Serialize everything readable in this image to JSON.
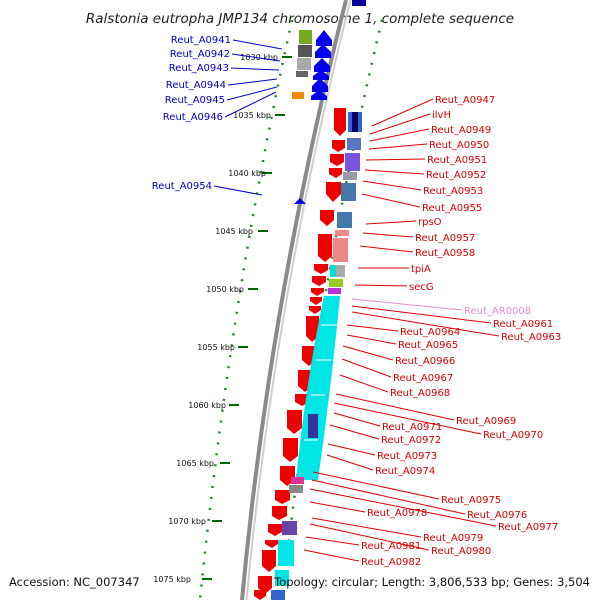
{
  "title": "Ralstonia eutropha JMP134 chromosome 1, complete sequence",
  "accession": "Accession: NC_007347",
  "summary": "Topology: circular; Length: 3,806,533 bp; Genes: 3,504",
  "ticks": [
    "1030 kbp",
    "1035 kbp",
    "1040 kbp",
    "1045 kbp",
    "1050 kbp",
    "1055 kbp",
    "1060 kbp",
    "1065 kbp",
    "1070 kbp",
    "1075 kbp"
  ],
  "colors": {
    "reverse_strand_label": "#0000cc",
    "forward_strand_label": "#dd0000",
    "rna_label": "#ee88cc",
    "backbone": "#888888",
    "tick": "#006600"
  },
  "left_labels": [
    "Reut_A0941",
    "Reut_A0942",
    "Reut_A0943",
    "Reut_A0944",
    "Reut_A0945",
    "Reut_A0946",
    "Reut_A0954"
  ],
  "right_labels": [
    "Reut_A0947",
    "ilvH",
    "Reut_A0949",
    "Reut_A0950",
    "Reut_A0951",
    "Reut_A0952",
    "Reut_A0953",
    "Reut_A0955",
    "rpsO",
    "Reut_A0957",
    "Reut_A0958",
    "tpiA",
    "secG",
    "Reut_AR0008",
    "Reut_A0961",
    "Reut_A0963",
    "Reut_A0964",
    "Reut_A0965",
    "Reut_A0966",
    "Reut_A0967",
    "Reut_A0968",
    "Reut_A0969",
    "Reut_A0970",
    "Reut_A0971",
    "Reut_A0972",
    "Reut_A0973",
    "Reut_A0974",
    "Reut_A0975",
    "Reut_A0976",
    "Reut_A0977",
    "Reut_A0978",
    "Reut_A0979",
    "Reut_A0980",
    "Reut_A0981",
    "Reut_A0982"
  ]
}
